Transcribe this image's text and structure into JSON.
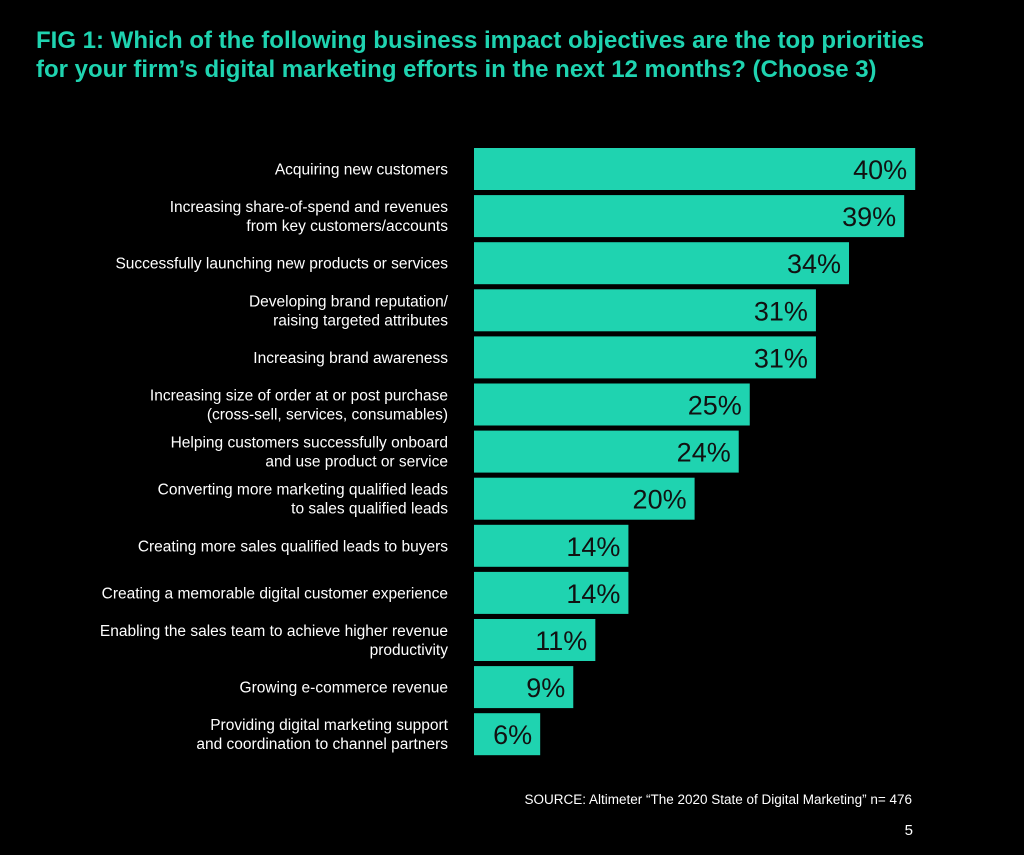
{
  "title": {
    "line1": "FIG 1: Which of the following business impact objectives are the top priorities",
    "line2": "for your firm’s digital marketing efforts in the next 12 months? (Choose 3)"
  },
  "colors": {
    "accent": "#1FD3B0",
    "background": "#000000",
    "text": "#FFFFFF",
    "bar_text": "#111111"
  },
  "chart_data": {
    "type": "bar",
    "orientation": "horizontal",
    "title": "FIG 1: Which of the following business impact objectives are the top priorities for your firm’s digital marketing efforts in the next 12 months? (Choose 3)",
    "categories": [
      [
        "Acquiring new customers"
      ],
      [
        "Increasing share-of-spend and revenues",
        "from key customers/accounts"
      ],
      [
        "Successfully launching new products or services"
      ],
      [
        "Developing brand reputation/",
        "raising targeted attributes"
      ],
      [
        "Increasing brand awareness"
      ],
      [
        "Increasing size of order at or post purchase",
        "(cross-sell, services, consumables)"
      ],
      [
        "Helping customers successfully onboard",
        "and use product or service"
      ],
      [
        "Converting more marketing qualified leads",
        "to sales qualified leads"
      ],
      [
        "Creating more sales qualified leads to buyers"
      ],
      [
        "Creating a memorable digital customer experience"
      ],
      [
        "Enabling the sales team to achieve higher revenue",
        "productivity"
      ],
      [
        "Growing e-commerce revenue"
      ],
      [
        "Providing digital marketing support",
        "and coordination to channel partners"
      ]
    ],
    "values": [
      40,
      39,
      34,
      31,
      31,
      25,
      24,
      20,
      14,
      14,
      11,
      9,
      6
    ],
    "value_labels": [
      "40%",
      "39%",
      "34%",
      "31%",
      "31%",
      "25%",
      "24%",
      "20%",
      "14%",
      "14%",
      "11%",
      "9%",
      "6%"
    ],
    "unit": "%",
    "xlim": [
      0,
      40
    ],
    "grid": false,
    "legend": "none"
  },
  "footer": {
    "source": "SOURCE: Altimeter “The 2020 State of Digital Marketing” n= 476",
    "page_number": "5"
  }
}
